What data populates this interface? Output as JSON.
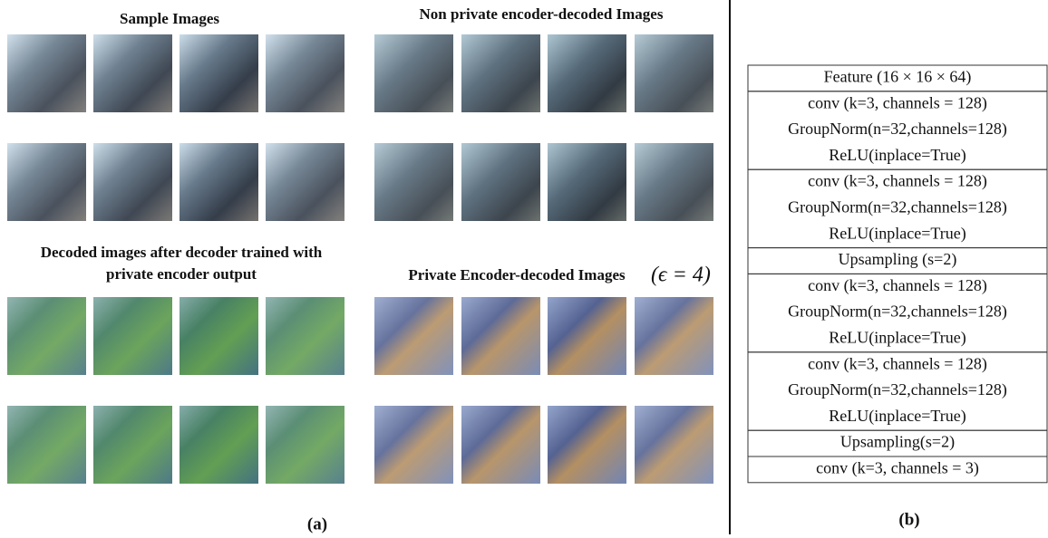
{
  "panel_a": {
    "groups": [
      {
        "title_lines": [
          "Sample Images"
        ]
      },
      {
        "title_lines": [
          "Non private encoder-decoded Images"
        ]
      },
      {
        "title_lines": [
          "Decoded images after decoder trained with",
          "private encoder output"
        ]
      },
      {
        "title_lines": [
          "Private Encoder-decoded Images"
        ],
        "math": "(ϵ = 4)"
      }
    ],
    "caption": "(a)"
  },
  "panel_b": {
    "rows": [
      [
        "Feature (16 × 16 × 64)"
      ],
      [
        "conv (k=3, channels = 128)",
        "GroupNorm(n=32,channels=128)",
        "ReLU(inplace=True)"
      ],
      [
        "conv (k=3, channels = 128)",
        "GroupNorm(n=32,channels=128)",
        "ReLU(inplace=True)"
      ],
      [
        "Upsampling (s=2)"
      ],
      [
        "conv (k=3, channels = 128)",
        "GroupNorm(n=32,channels=128)",
        "ReLU(inplace=True)"
      ],
      [
        "conv (k=3, channels = 128)",
        "GroupNorm(n=32,channels=128)",
        "ReLU(inplace=True)"
      ],
      [
        "Upsampling(s=2)"
      ],
      [
        "conv (k=3, channels = 3)"
      ]
    ],
    "caption": "(b)"
  }
}
